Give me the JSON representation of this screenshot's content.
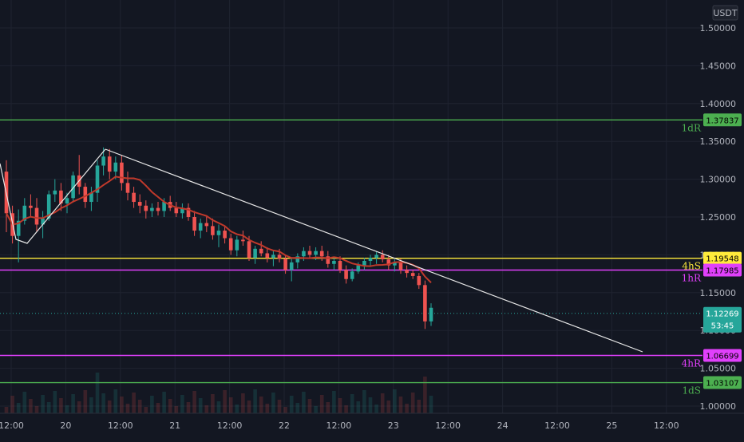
{
  "chart_data": {
    "type": "candlestick",
    "currency": "USDT",
    "ylim": [
      0.97,
      1.52
    ],
    "y_ticks": [
      "1.50000",
      "1.45000",
      "1.40000",
      "1.35000",
      "1.30000",
      "1.25000",
      "1.20000",
      "1.15000",
      "1.10000",
      "1.05000",
      "1.00000"
    ],
    "x_ticks": [
      "12:00",
      "20",
      "12:00",
      "21",
      "12:00",
      "22",
      "12:00",
      "23",
      "12:00",
      "24",
      "12:00",
      "25",
      "12:00"
    ],
    "levels": [
      {
        "label": "1dR",
        "price": 1.37837,
        "price_text": "1.37837",
        "color": "#4caf50",
        "tag_bg": "#4caf50",
        "tag_fg": "#000000"
      },
      {
        "label": "4hS",
        "price": 1.19548,
        "price_text": "1.19548",
        "color": "#ffeb3b",
        "tag_bg": "#ffeb3b",
        "tag_fg": "#000000"
      },
      {
        "label": "1hR",
        "price": 1.17985,
        "price_text": "1.17985",
        "color": "#e040fb",
        "tag_bg": "#e040fb",
        "tag_fg": "#000000"
      },
      {
        "label": "4hR",
        "price": 1.06699,
        "price_text": "1.06699",
        "color": "#e040fb",
        "tag_bg": "#e040fb",
        "tag_fg": "#000000"
      },
      {
        "label": "1dS",
        "price": 1.03107,
        "price_text": "1.03107",
        "color": "#4caf50",
        "tag_bg": "#4caf50",
        "tag_fg": "#000000"
      }
    ],
    "current_price": {
      "value": 1.12269,
      "price_text": "1.12269",
      "countdown": "53:45",
      "color": "#26a69a"
    },
    "candles": [
      [
        1.31,
        1.325,
        1.23,
        1.255
      ],
      [
        1.255,
        1.265,
        1.215,
        1.225
      ],
      [
        1.225,
        1.26,
        1.19,
        1.245
      ],
      [
        1.245,
        1.275,
        1.24,
        1.265
      ],
      [
        1.265,
        1.28,
        1.25,
        1.262
      ],
      [
        1.262,
        1.275,
        1.23,
        1.24
      ],
      [
        1.24,
        1.258,
        1.222,
        1.248
      ],
      [
        1.248,
        1.285,
        1.245,
        1.28
      ],
      [
        1.28,
        1.3,
        1.27,
        1.285
      ],
      [
        1.285,
        1.295,
        1.258,
        1.268
      ],
      [
        1.268,
        1.282,
        1.255,
        1.275
      ],
      [
        1.275,
        1.31,
        1.27,
        1.305
      ],
      [
        1.305,
        1.332,
        1.28,
        1.29
      ],
      [
        1.29,
        1.295,
        1.262,
        1.27
      ],
      [
        1.27,
        1.29,
        1.258,
        1.282
      ],
      [
        1.282,
        1.325,
        1.27,
        1.318
      ],
      [
        1.318,
        1.342,
        1.305,
        1.33
      ],
      [
        1.33,
        1.34,
        1.3,
        1.31
      ],
      [
        1.31,
        1.33,
        1.3,
        1.322
      ],
      [
        1.322,
        1.332,
        1.285,
        1.295
      ],
      [
        1.295,
        1.31,
        1.272,
        1.282
      ],
      [
        1.282,
        1.29,
        1.262,
        1.27
      ],
      [
        1.27,
        1.28,
        1.255,
        1.265
      ],
      [
        1.265,
        1.272,
        1.248,
        1.258
      ],
      [
        1.258,
        1.268,
        1.25,
        1.262
      ],
      [
        1.262,
        1.27,
        1.252,
        1.258
      ],
      [
        1.258,
        1.275,
        1.25,
        1.27
      ],
      [
        1.27,
        1.278,
        1.258,
        1.262
      ],
      [
        1.262,
        1.27,
        1.25,
        1.255
      ],
      [
        1.255,
        1.268,
        1.248,
        1.262
      ],
      [
        1.262,
        1.268,
        1.245,
        1.25
      ],
      [
        1.25,
        1.258,
        1.225,
        1.232
      ],
      [
        1.232,
        1.248,
        1.222,
        1.242
      ],
      [
        1.242,
        1.252,
        1.23,
        1.238
      ],
      [
        1.238,
        1.248,
        1.22,
        1.226
      ],
      [
        1.226,
        1.24,
        1.21,
        1.232
      ],
      [
        1.232,
        1.238,
        1.215,
        1.222
      ],
      [
        1.222,
        1.228,
        1.2,
        1.206
      ],
      [
        1.206,
        1.225,
        1.198,
        1.22
      ],
      [
        1.22,
        1.232,
        1.212,
        1.218
      ],
      [
        1.218,
        1.225,
        1.192,
        1.196
      ],
      [
        1.196,
        1.212,
        1.188,
        1.208
      ],
      [
        1.208,
        1.218,
        1.198,
        1.202
      ],
      [
        1.202,
        1.21,
        1.19,
        1.196
      ],
      [
        1.196,
        1.206,
        1.185,
        1.2
      ],
      [
        1.2,
        1.208,
        1.19,
        1.195
      ],
      [
        1.195,
        1.2,
        1.175,
        1.18
      ],
      [
        1.18,
        1.195,
        1.165,
        1.19
      ],
      [
        1.19,
        1.202,
        1.182,
        1.198
      ],
      [
        1.198,
        1.21,
        1.192,
        1.205
      ],
      [
        1.205,
        1.212,
        1.195,
        1.2
      ],
      [
        1.2,
        1.21,
        1.193,
        1.205
      ],
      [
        1.205,
        1.212,
        1.192,
        1.198
      ],
      [
        1.198,
        1.205,
        1.183,
        1.188
      ],
      [
        1.188,
        1.196,
        1.18,
        1.192
      ],
      [
        1.192,
        1.198,
        1.176,
        1.18
      ],
      [
        1.18,
        1.186,
        1.162,
        1.168
      ],
      [
        1.168,
        1.182,
        1.165,
        1.178
      ],
      [
        1.178,
        1.19,
        1.175,
        1.186
      ],
      [
        1.186,
        1.196,
        1.18,
        1.192
      ],
      [
        1.192,
        1.2,
        1.186,
        1.196
      ],
      [
        1.196,
        1.204,
        1.188,
        1.2
      ],
      [
        1.2,
        1.206,
        1.19,
        1.194
      ],
      [
        1.194,
        1.2,
        1.18,
        1.186
      ],
      [
        1.186,
        1.194,
        1.178,
        1.19
      ],
      [
        1.19,
        1.195,
        1.175,
        1.18
      ],
      [
        1.18,
        1.186,
        1.17,
        1.176
      ],
      [
        1.176,
        1.18,
        1.168,
        1.172
      ],
      [
        1.172,
        1.176,
        1.155,
        1.16
      ],
      [
        1.16,
        1.166,
        1.102,
        1.112
      ],
      [
        1.112,
        1.136,
        1.106,
        1.13
      ]
    ]
  }
}
